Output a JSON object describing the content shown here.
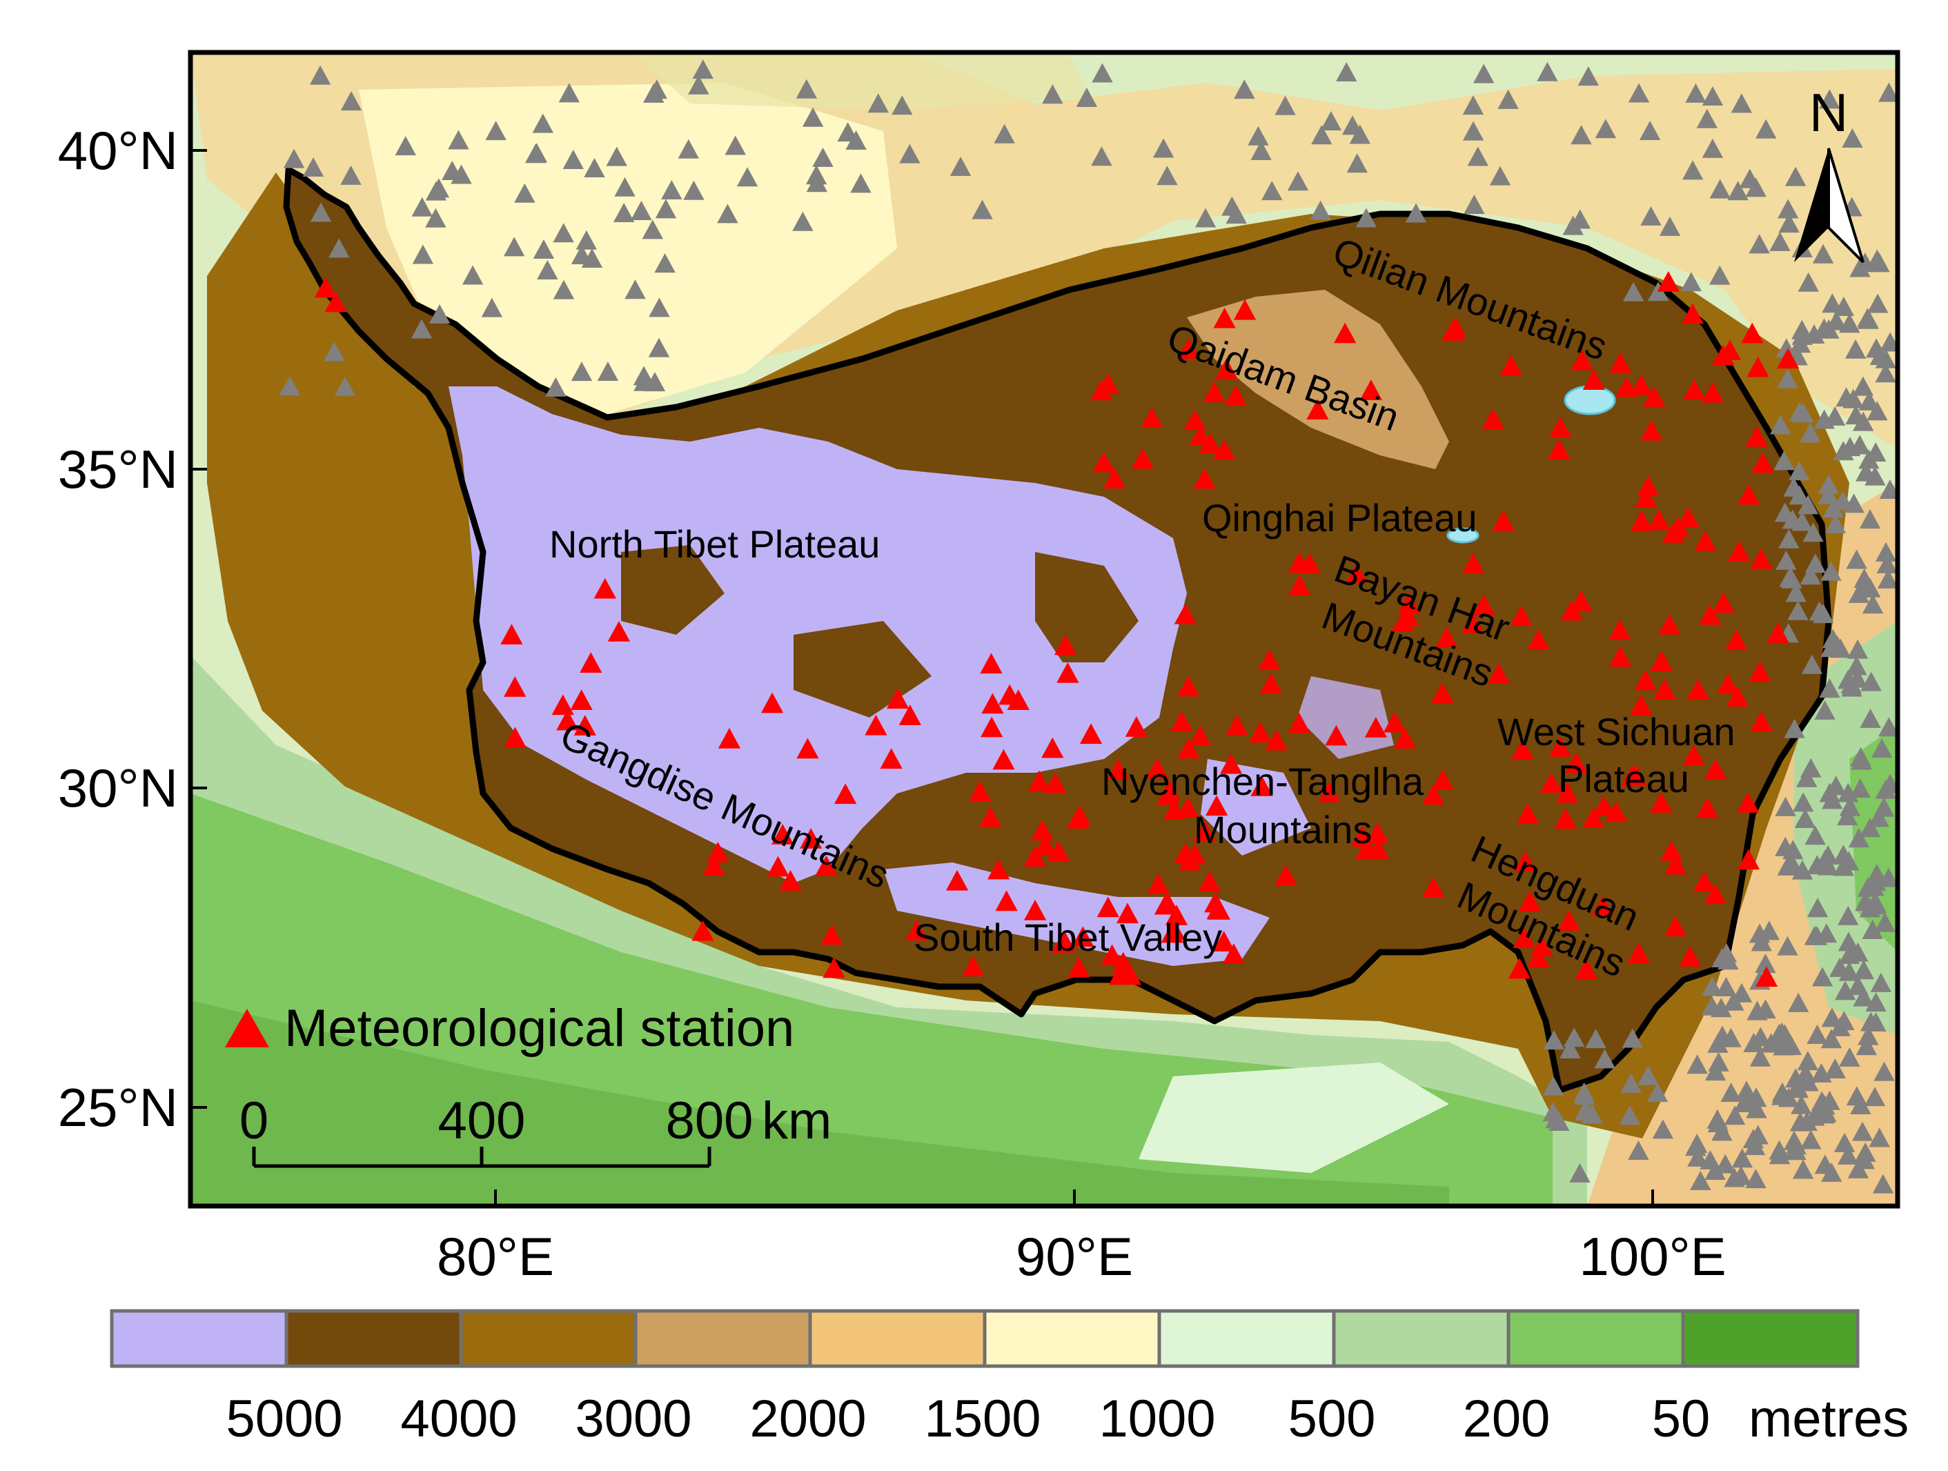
{
  "map": {
    "lat_labels": [
      "40°N",
      "35°N",
      "30°N",
      "25°N"
    ],
    "lon_labels": [
      "80°E",
      "90°E",
      "100°E"
    ],
    "north_label": "N",
    "region_labels": [
      "Qilian Mountains",
      "Qaidam Basin",
      "Qinghai Plateau",
      "North Tibet Plateau",
      "Bayan Har",
      "Mountains",
      "West Sichuan",
      "Plateau",
      "Gangdise Mountains",
      "Nyenchen-Tanglha",
      "Mountains",
      "Hengduan",
      "Mountains",
      "South Tibet Valley"
    ],
    "legend": {
      "marker_color": "#ff0000",
      "label": "Meteorological station"
    },
    "scale_bar": {
      "ticks": [
        "0",
        "400",
        "800"
      ],
      "unit": "km"
    },
    "station_colors": {
      "inside": "#ff0000",
      "outside": "#808080"
    }
  },
  "colorbar": {
    "colors": [
      "#c0b3f5",
      "#73490c",
      "#9a6c0e",
      "#cda062",
      "#f2c57b",
      "#fff8c4",
      "#dff6d6",
      "#b0d9a0",
      "#80c860",
      "#4ea229"
    ],
    "tick_labels": [
      "5000",
      "4000",
      "3000",
      "2000",
      "1500",
      "1000",
      "500",
      "200",
      "50"
    ],
    "unit": "metres"
  }
}
